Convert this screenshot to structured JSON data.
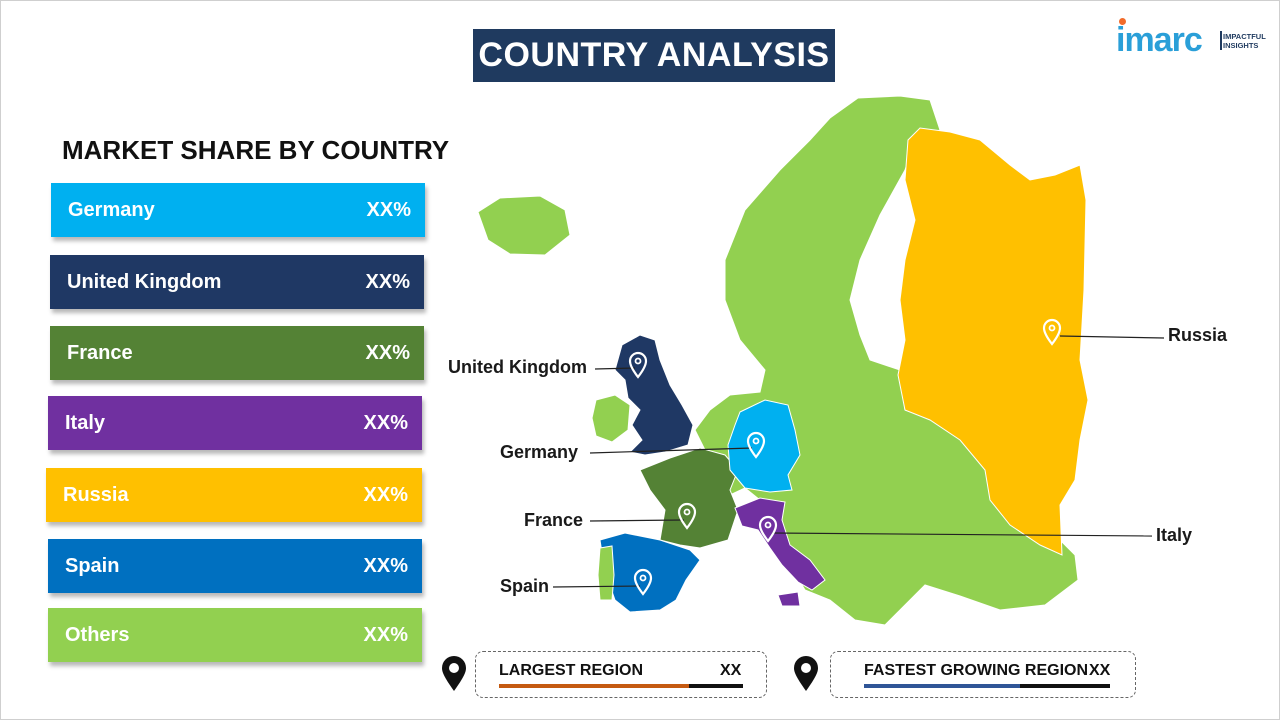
{
  "header": {
    "title": "COUNTRY ANALYSIS"
  },
  "logo": {
    "wordmark": "imarc",
    "tagline_line1": "IMPACTFUL",
    "tagline_line2": "INSIGHTS",
    "color": "#2a9fd8",
    "accent": "#f26b2a"
  },
  "market_share": {
    "title": "MARKET SHARE BY COUNTRY",
    "items": [
      {
        "name": "Germany",
        "value": "XX%",
        "color": "#00b0f0"
      },
      {
        "name": "United Kingdom",
        "value": "XX%",
        "color": "#1f3864"
      },
      {
        "name": "France",
        "value": "XX%",
        "color": "#548235"
      },
      {
        "name": "Italy",
        "value": "XX%",
        "color": "#7030a0"
      },
      {
        "name": "Russia",
        "value": "XX%",
        "color": "#ffc000"
      },
      {
        "name": "Spain",
        "value": "XX%",
        "color": "#0070c0"
      },
      {
        "name": "Others",
        "value": "XX%",
        "color": "#92d050"
      }
    ]
  },
  "map_labels": {
    "russia": "Russia",
    "united_kingdom": "United Kingdom",
    "germany": "Germany",
    "france": "France",
    "italy": "Italy",
    "spain": "Spain"
  },
  "legend": {
    "largest_region": {
      "label": "LARGEST REGION",
      "value": "XX",
      "color": "#c55a11"
    },
    "fastest_growing_region": {
      "label": "FASTEST GROWING REGION",
      "value": "XX",
      "color": "#2f5597"
    }
  }
}
